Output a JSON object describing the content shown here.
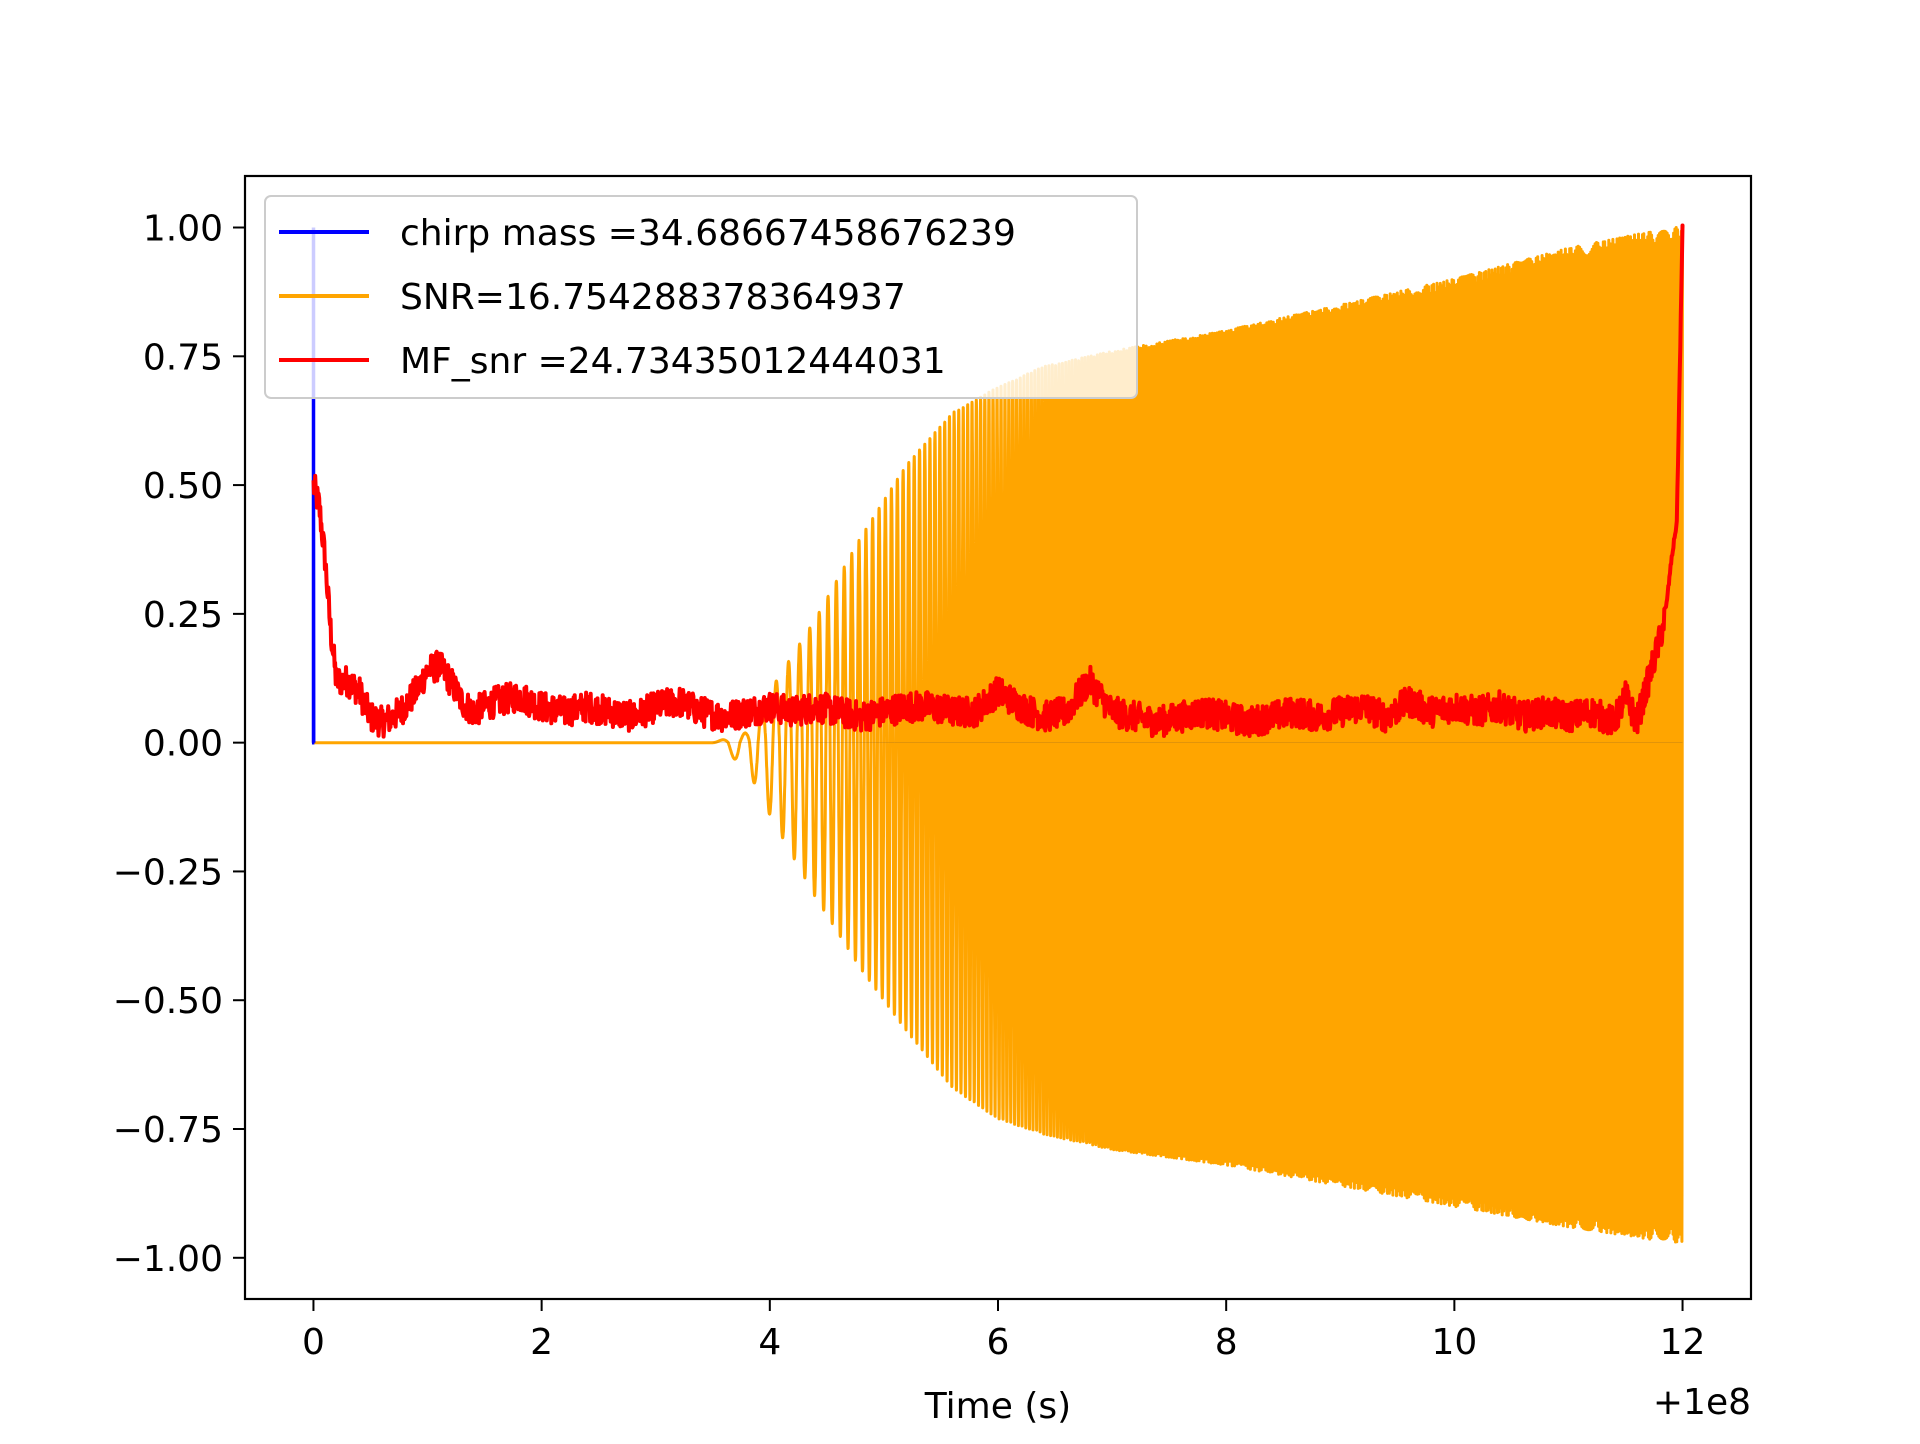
{
  "chart_data": {
    "type": "line",
    "title": "",
    "xlabel": "Time (s)",
    "ylabel": "",
    "x_offset_label": "+1e8",
    "xlim": [
      -0.6,
      12.6
    ],
    "ylim": [
      -1.08,
      1.1
    ],
    "x_ticks": [
      0,
      2,
      4,
      6,
      8,
      10,
      12
    ],
    "x_tick_labels": [
      "0",
      "2",
      "4",
      "6",
      "8",
      "10",
      "12"
    ],
    "y_ticks": [
      1.0,
      0.75,
      0.5,
      0.25,
      0.0,
      -0.25,
      -0.5,
      -0.75,
      -1.0
    ],
    "y_tick_labels": [
      "1.00",
      "0.75",
      "0.50",
      "0.25",
      "0.00",
      "−0.25",
      "−0.50",
      "−0.75",
      "−1.00"
    ],
    "grid": false,
    "legend_position": "top-left",
    "series": [
      {
        "name": "chirp mass =34.68667458676239",
        "color": "#0000ff",
        "x": [
          0.0,
          0.0,
          0.0,
          0.002,
          0.004,
          0.006,
          0.008
        ],
        "y": [
          0.0,
          1.0,
          0.45,
          0.0,
          0.0,
          0.0,
          0.0
        ]
      },
      {
        "name": "SNR=16.754288378364937",
        "color": "#ffa500",
        "description_kind": "chirp",
        "t_start": 0.0,
        "t_end": 12.0,
        "onset": 3.5,
        "amplitude_envelope": {
          "t": [
            3.5,
            3.8,
            4.0,
            4.4,
            4.8,
            5.2,
            5.6,
            6.0,
            6.4,
            7.0,
            8.0,
            9.0,
            10.0,
            11.0,
            11.9
          ],
          "pos": [
            0.0,
            0.02,
            0.1,
            0.24,
            0.4,
            0.54,
            0.64,
            0.69,
            0.73,
            0.76,
            0.8,
            0.85,
            0.9,
            0.96,
            1.0
          ],
          "neg": [
            0.0,
            -0.05,
            -0.14,
            -0.3,
            -0.44,
            -0.56,
            -0.67,
            -0.73,
            -0.76,
            -0.79,
            -0.82,
            -0.86,
            -0.9,
            -0.94,
            -0.97
          ]
        }
      },
      {
        "name": "MF_snr =24.73435012444031",
        "color": "#ff0000",
        "x": [
          0.0,
          0.05,
          0.1,
          0.15,
          0.2,
          0.3,
          0.4,
          0.5,
          0.6,
          0.7,
          0.8,
          0.9,
          1.0,
          1.1,
          1.2,
          1.3,
          1.4,
          1.5,
          1.6,
          1.8,
          2.0,
          2.2,
          2.4,
          2.6,
          2.8,
          3.0,
          3.2,
          3.4,
          3.6,
          3.8,
          4.0,
          4.2,
          4.4,
          4.6,
          4.8,
          5.0,
          5.2,
          5.4,
          5.6,
          5.8,
          6.0,
          6.2,
          6.4,
          6.6,
          6.8,
          7.0,
          7.2,
          7.4,
          7.6,
          7.8,
          8.0,
          8.2,
          8.4,
          8.6,
          8.8,
          9.0,
          9.2,
          9.4,
          9.6,
          9.8,
          10.0,
          10.2,
          10.4,
          10.6,
          10.8,
          11.0,
          11.2,
          11.4,
          11.5,
          11.6,
          11.7,
          11.8,
          11.85,
          11.9,
          11.95,
          12.0
        ],
        "y": [
          0.5,
          0.46,
          0.36,
          0.22,
          0.12,
          0.12,
          0.1,
          0.05,
          0.04,
          0.05,
          0.07,
          0.1,
          0.14,
          0.15,
          0.12,
          0.08,
          0.06,
          0.07,
          0.08,
          0.09,
          0.07,
          0.06,
          0.07,
          0.06,
          0.05,
          0.07,
          0.08,
          0.06,
          0.05,
          0.06,
          0.07,
          0.06,
          0.07,
          0.06,
          0.05,
          0.06,
          0.07,
          0.07,
          0.06,
          0.06,
          0.1,
          0.07,
          0.05,
          0.06,
          0.12,
          0.06,
          0.05,
          0.04,
          0.05,
          0.06,
          0.05,
          0.04,
          0.05,
          0.06,
          0.05,
          0.06,
          0.07,
          0.05,
          0.08,
          0.06,
          0.07,
          0.06,
          0.07,
          0.05,
          0.06,
          0.05,
          0.06,
          0.04,
          0.09,
          0.04,
          0.12,
          0.2,
          0.25,
          0.35,
          0.43,
          1.0
        ]
      }
    ]
  }
}
